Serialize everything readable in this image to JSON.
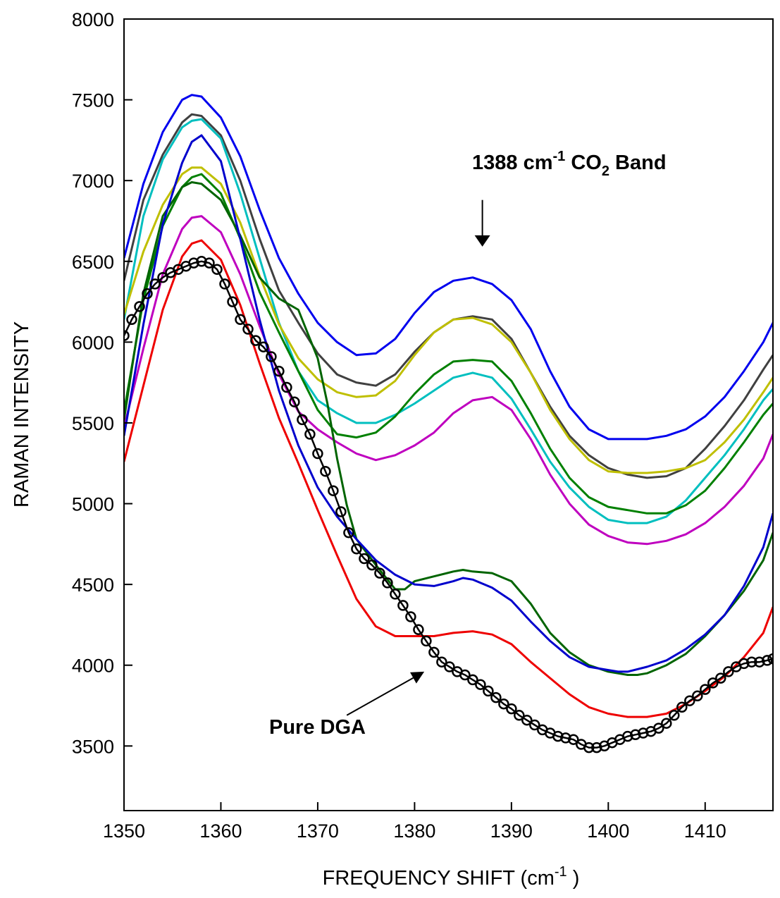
{
  "chart_data": {
    "type": "line",
    "xlabel": "FREQUENCY SHIFT (cm",
    "xlabel_sup": "-1",
    "xlabel_end": " )",
    "ylabel": "RAMAN INTENSITY",
    "xlim": [
      1350,
      1417
    ],
    "ylim": [
      3100,
      8000
    ],
    "xticks": [
      "1350",
      "1360",
      "1370",
      "1380",
      "1390",
      "1400",
      "1410"
    ],
    "yticks": [
      "3500",
      "4000",
      "4500",
      "5000",
      "5500",
      "6000",
      "6500",
      "7000",
      "7500",
      "8000"
    ],
    "grid": false,
    "annotations": {
      "band": {
        "prefix": "1388 cm",
        "sup": "-1",
        "mid": " CO",
        "sub": "2",
        "suffix": " Band",
        "arrow_x": 1387,
        "arrow_from_y": 6880,
        "arrow_to_y": 6600
      },
      "dga": {
        "text": "Pure DGA",
        "arrow_from": [
          1373,
          3690
        ],
        "arrow_to": [
          1381,
          3960
        ]
      }
    },
    "series": [
      {
        "color": "#0000ee",
        "x": [
          1350,
          1352,
          1354,
          1356,
          1357,
          1358,
          1360,
          1362,
          1364,
          1366,
          1368,
          1370,
          1372,
          1374,
          1376,
          1378,
          1380,
          1382,
          1384,
          1386,
          1388,
          1390,
          1392,
          1394,
          1396,
          1398,
          1400,
          1402,
          1404,
          1406,
          1408,
          1410,
          1412,
          1414,
          1416,
          1417
        ],
        "y": [
          6520,
          6980,
          7300,
          7500,
          7530,
          7520,
          7390,
          7150,
          6820,
          6520,
          6300,
          6120,
          6000,
          5920,
          5930,
          6020,
          6180,
          6310,
          6380,
          6400,
          6360,
          6260,
          6080,
          5820,
          5600,
          5460,
          5400,
          5400,
          5400,
          5420,
          5460,
          5540,
          5660,
          5820,
          6000,
          6120
        ]
      },
      {
        "color": "#404040",
        "x": [
          1350,
          1352,
          1354,
          1356,
          1357,
          1358,
          1360,
          1362,
          1364,
          1366,
          1368,
          1370,
          1372,
          1374,
          1376,
          1378,
          1380,
          1382,
          1384,
          1386,
          1388,
          1390,
          1392,
          1394,
          1396,
          1398,
          1400,
          1402,
          1404,
          1406,
          1408,
          1410,
          1412,
          1414,
          1416,
          1417
        ],
        "y": [
          6380,
          6880,
          7160,
          7360,
          7410,
          7400,
          7280,
          7000,
          6640,
          6320,
          6120,
          5930,
          5800,
          5750,
          5730,
          5800,
          5940,
          6060,
          6140,
          6160,
          6140,
          6020,
          5810,
          5600,
          5420,
          5300,
          5220,
          5180,
          5160,
          5170,
          5220,
          5340,
          5480,
          5640,
          5830,
          5920
        ]
      },
      {
        "color": "#00bfbf",
        "x": [
          1350,
          1352,
          1354,
          1356,
          1357,
          1358,
          1360,
          1362,
          1364,
          1366,
          1368,
          1370,
          1372,
          1374,
          1376,
          1378,
          1380,
          1382,
          1384,
          1386,
          1388,
          1390,
          1392,
          1394,
          1396,
          1398,
          1400,
          1402,
          1404,
          1406,
          1408,
          1410,
          1412,
          1414,
          1416,
          1417
        ],
        "y": [
          6140,
          6780,
          7130,
          7330,
          7370,
          7380,
          7260,
          6920,
          6520,
          6120,
          5820,
          5640,
          5560,
          5500,
          5500,
          5550,
          5620,
          5700,
          5780,
          5810,
          5780,
          5650,
          5460,
          5260,
          5100,
          4980,
          4900,
          4880,
          4880,
          4920,
          5020,
          5160,
          5300,
          5460,
          5640,
          5710
        ]
      },
      {
        "color": "#bfbf00",
        "x": [
          1350,
          1352,
          1354,
          1356,
          1357,
          1358,
          1360,
          1362,
          1364,
          1366,
          1368,
          1370,
          1372,
          1374,
          1376,
          1378,
          1380,
          1382,
          1384,
          1386,
          1388,
          1390,
          1392,
          1394,
          1396,
          1398,
          1400,
          1402,
          1404,
          1406,
          1408,
          1410,
          1412,
          1414,
          1416,
          1417
        ],
        "y": [
          6170,
          6560,
          6850,
          7040,
          7080,
          7080,
          6980,
          6740,
          6410,
          6110,
          5900,
          5770,
          5690,
          5660,
          5670,
          5760,
          5920,
          6060,
          6140,
          6150,
          6110,
          6000,
          5810,
          5580,
          5400,
          5270,
          5200,
          5190,
          5190,
          5200,
          5220,
          5270,
          5380,
          5520,
          5690,
          5780
        ]
      },
      {
        "color": "#008000",
        "x": [
          1350,
          1352,
          1354,
          1356,
          1357,
          1358,
          1360,
          1362,
          1364,
          1366,
          1368,
          1370,
          1372,
          1374,
          1376,
          1378,
          1380,
          1382,
          1384,
          1386,
          1388,
          1390,
          1392,
          1394,
          1396,
          1398,
          1400,
          1402,
          1404,
          1406,
          1408,
          1410,
          1412,
          1414,
          1416,
          1417
        ],
        "y": [
          5570,
          6260,
          6720,
          6960,
          7020,
          7040,
          6920,
          6640,
          6310,
          6060,
          5820,
          5580,
          5430,
          5410,
          5440,
          5540,
          5680,
          5800,
          5880,
          5890,
          5880,
          5760,
          5560,
          5340,
          5160,
          5040,
          4980,
          4960,
          4940,
          4940,
          4990,
          5080,
          5220,
          5380,
          5550,
          5620
        ]
      },
      {
        "color": "#bf00bf",
        "x": [
          1350,
          1352,
          1354,
          1356,
          1357,
          1358,
          1360,
          1362,
          1364,
          1366,
          1368,
          1370,
          1372,
          1374,
          1376,
          1378,
          1380,
          1382,
          1384,
          1386,
          1388,
          1390,
          1392,
          1394,
          1396,
          1398,
          1400,
          1402,
          1404,
          1406,
          1408,
          1410,
          1412,
          1414,
          1416,
          1417
        ],
        "y": [
          5470,
          5960,
          6420,
          6700,
          6770,
          6780,
          6680,
          6420,
          6100,
          5800,
          5570,
          5460,
          5380,
          5310,
          5270,
          5300,
          5360,
          5440,
          5560,
          5640,
          5660,
          5580,
          5400,
          5180,
          5000,
          4870,
          4800,
          4760,
          4750,
          4770,
          4810,
          4880,
          4980,
          5110,
          5280,
          5430
        ]
      },
      {
        "color": "#006400",
        "x": [
          1350,
          1352,
          1354,
          1356,
          1357,
          1358,
          1360,
          1362,
          1364,
          1366,
          1368,
          1370,
          1371,
          1372,
          1373,
          1374,
          1376,
          1378,
          1379,
          1380,
          1382,
          1384,
          1385,
          1386,
          1388,
          1390,
          1392,
          1394,
          1396,
          1398,
          1400,
          1402,
          1403,
          1404,
          1406,
          1408,
          1410,
          1412,
          1414,
          1416,
          1417
        ],
        "y": [
          5520,
          6300,
          6780,
          6960,
          6990,
          6980,
          6880,
          6660,
          6400,
          6270,
          6200,
          5900,
          5620,
          5280,
          4990,
          4780,
          4620,
          4470,
          4470,
          4520,
          4550,
          4580,
          4590,
          4580,
          4570,
          4520,
          4380,
          4200,
          4080,
          4000,
          3960,
          3940,
          3940,
          3950,
          4000,
          4070,
          4180,
          4310,
          4460,
          4650,
          4820
        ]
      },
      {
        "color": "#0000cc",
        "x": [
          1350,
          1352,
          1354,
          1356,
          1357,
          1358,
          1360,
          1362,
          1364,
          1366,
          1368,
          1370,
          1372,
          1374,
          1376,
          1378,
          1380,
          1382,
          1384,
          1385,
          1386,
          1388,
          1390,
          1392,
          1394,
          1396,
          1398,
          1400,
          1401,
          1402,
          1404,
          1406,
          1408,
          1410,
          1412,
          1414,
          1416,
          1417
        ],
        "y": [
          5420,
          6110,
          6730,
          7110,
          7240,
          7280,
          7120,
          6640,
          6140,
          5700,
          5360,
          5100,
          4920,
          4780,
          4650,
          4560,
          4500,
          4490,
          4520,
          4540,
          4530,
          4480,
          4400,
          4270,
          4150,
          4050,
          3990,
          3970,
          3960,
          3960,
          3990,
          4030,
          4100,
          4190,
          4310,
          4490,
          4730,
          4940
        ]
      },
      {
        "color": "#ee0000",
        "x": [
          1350,
          1352,
          1354,
          1356,
          1357,
          1358,
          1360,
          1362,
          1364,
          1366,
          1368,
          1370,
          1372,
          1374,
          1376,
          1378,
          1380,
          1382,
          1384,
          1386,
          1388,
          1390,
          1392,
          1394,
          1396,
          1398,
          1400,
          1402,
          1404,
          1406,
          1408,
          1410,
          1412,
          1414,
          1416,
          1417
        ],
        "y": [
          5260,
          5730,
          6200,
          6530,
          6610,
          6630,
          6510,
          6230,
          5870,
          5530,
          5250,
          4960,
          4680,
          4410,
          4240,
          4180,
          4180,
          4180,
          4200,
          4210,
          4190,
          4130,
          4020,
          3920,
          3820,
          3740,
          3700,
          3680,
          3680,
          3700,
          3760,
          3840,
          3930,
          4050,
          4200,
          4360
        ]
      },
      {
        "color": "#000000",
        "marker": "circle",
        "x": [
          1350,
          1350.8,
          1351.6,
          1352.4,
          1353.2,
          1354,
          1354.8,
          1355.6,
          1356.4,
          1357.2,
          1358,
          1358.8,
          1359.6,
          1360.4,
          1361.2,
          1362,
          1362.8,
          1363.6,
          1364.4,
          1365.2,
          1366,
          1366.8,
          1367.6,
          1368.4,
          1369.2,
          1370,
          1370.8,
          1371.6,
          1372.4,
          1373.2,
          1374,
          1374.8,
          1375.6,
          1376.4,
          1377.2,
          1378,
          1378.8,
          1379.6,
          1380.4,
          1381.2,
          1382,
          1382.8,
          1383.6,
          1384.4,
          1385.2,
          1386,
          1386.8,
          1387.6,
          1388.4,
          1389.2,
          1390,
          1390.8,
          1391.6,
          1392.4,
          1393.2,
          1394,
          1394.8,
          1395.6,
          1396.4,
          1397.2,
          1398,
          1398.8,
          1399.6,
          1400.4,
          1401.2,
          1402,
          1402.8,
          1403.6,
          1404.4,
          1405.2,
          1406,
          1406.8,
          1407.6,
          1408.4,
          1409.2,
          1410,
          1410.8,
          1411.6,
          1412.4,
          1413.2,
          1414,
          1414.8,
          1415.6,
          1416.4,
          1417
        ],
        "y": [
          6040,
          6140,
          6220,
          6300,
          6360,
          6400,
          6430,
          6450,
          6470,
          6490,
          6500,
          6490,
          6450,
          6360,
          6250,
          6140,
          6080,
          6010,
          5970,
          5910,
          5820,
          5720,
          5630,
          5520,
          5430,
          5310,
          5200,
          5080,
          4950,
          4820,
          4720,
          4660,
          4620,
          4570,
          4510,
          4440,
          4370,
          4300,
          4220,
          4150,
          4080,
          4020,
          3990,
          3960,
          3940,
          3910,
          3880,
          3840,
          3800,
          3760,
          3730,
          3690,
          3660,
          3630,
          3600,
          3580,
          3560,
          3550,
          3540,
          3510,
          3490,
          3490,
          3500,
          3520,
          3540,
          3560,
          3570,
          3580,
          3590,
          3610,
          3640,
          3690,
          3740,
          3780,
          3810,
          3850,
          3890,
          3920,
          3960,
          3990,
          4010,
          4020,
          4020,
          4030,
          4040
        ]
      }
    ]
  }
}
